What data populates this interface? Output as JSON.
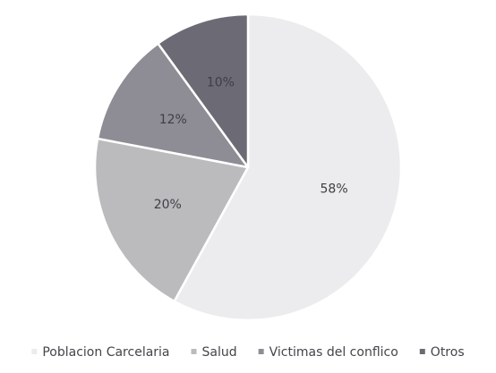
{
  "chart_data": {
    "type": "pie",
    "title": "",
    "categories": [
      "Poblacion Carcelaria",
      "Salud",
      "Victimas del conflico",
      "Otros"
    ],
    "values": [
      58,
      20,
      12,
      10
    ],
    "value_labels": [
      "58%",
      "20%",
      "12%",
      "10%"
    ],
    "colors": [
      "#ececee",
      "#bbbbbe",
      "#8e8d95",
      "#6c6b75"
    ],
    "legend_position": "bottom",
    "start_angle_deg": 0,
    "direction": "clockwise"
  }
}
